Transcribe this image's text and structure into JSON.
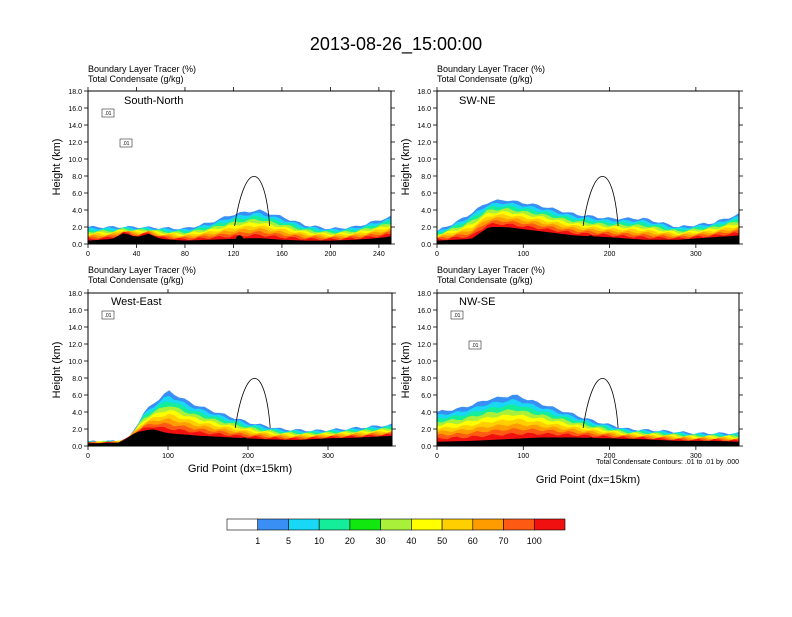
{
  "figure": {
    "title": "2013-08-26_15:00:00",
    "xaxis_title": "Grid Point (dx=15km)",
    "contour_note": "Total Condensate Contours: .01 to .01 by .000"
  },
  "colorbar": {
    "labels": [
      "1",
      "5",
      "10",
      "20",
      "30",
      "40",
      "50",
      "60",
      "70",
      "100"
    ],
    "colors": [
      "#ffffff",
      "#3a8ff5",
      "#18d8f5",
      "#14ee9a",
      "#10e810",
      "#a8f03a",
      "#ffff00",
      "#ffcf00",
      "#ff9c00",
      "#ff5a14",
      "#f01010"
    ]
  },
  "chart_data": [
    {
      "type": "heatmap",
      "name": "South-North",
      "title_line1": "Boundary Layer Tracer   (%)",
      "title_line2": "Total Condensate   (g/kg)",
      "ylabel": "Height (km)",
      "xlim": [
        0,
        250
      ],
      "ylim": [
        0,
        18
      ],
      "xticks": [
        "0",
        "40",
        "80",
        "120",
        "160",
        "200",
        "240"
      ],
      "yticks": [
        "0.0",
        "2.0",
        "4.0",
        "6.0",
        "8.0",
        "10.0",
        "12.0",
        "14.0",
        "16.0",
        "18.0"
      ],
      "contour_labels": [
        ".01",
        ".01"
      ],
      "terrain_x": [
        0,
        20,
        30,
        40,
        50,
        60,
        80,
        100,
        120,
        140,
        160,
        180,
        200,
        220,
        240,
        250
      ],
      "terrain_km": [
        0.4,
        0.6,
        1.3,
        0.8,
        1.2,
        0.6,
        0.4,
        0.5,
        0.6,
        0.7,
        0.5,
        0.4,
        0.4,
        0.5,
        0.7,
        0.9
      ],
      "bl_top_x": [
        0,
        40,
        80,
        100,
        120,
        140,
        160,
        180,
        200,
        220,
        240,
        250
      ],
      "bl_top_km": [
        2.0,
        2.0,
        1.8,
        2.5,
        3.5,
        4.0,
        3.2,
        2.2,
        1.8,
        2.0,
        2.8,
        3.2
      ],
      "marker_x": 125
    },
    {
      "type": "heatmap",
      "name": "SW-NE",
      "title_line1": "Boundary Layer Tracer   (%)",
      "title_line2": "Total Condensate   (g/kg)",
      "ylabel": "Height (km)",
      "xlim": [
        0,
        350
      ],
      "ylim": [
        0,
        18
      ],
      "xticks": [
        "0",
        "100",
        "200",
        "300"
      ],
      "yticks": [
        "0.0",
        "2.0",
        "4.0",
        "6.0",
        "8.0",
        "10.0",
        "12.0",
        "14.0",
        "16.0",
        "18.0"
      ],
      "contour_labels": [],
      "terrain_x": [
        0,
        40,
        60,
        80,
        120,
        160,
        200,
        240,
        280,
        320,
        350
      ],
      "terrain_km": [
        0.4,
        0.6,
        2.0,
        2.0,
        1.5,
        1.0,
        0.8,
        0.5,
        0.5,
        0.8,
        1.0
      ],
      "bl_top_x": [
        0,
        30,
        60,
        80,
        120,
        160,
        200,
        240,
        280,
        320,
        350
      ],
      "bl_top_km": [
        1.5,
        3.0,
        5.0,
        5.2,
        4.5,
        3.5,
        3.0,
        3.0,
        2.0,
        2.5,
        3.5
      ],
      "marker_x": 178
    },
    {
      "type": "heatmap",
      "name": "West-East",
      "title_line1": "Boundary Layer Tracer   (%)",
      "title_line2": "Total Condensate   (g/kg)",
      "ylabel": "Height (km)",
      "xlim": [
        0,
        380
      ],
      "ylim": [
        0,
        18
      ],
      "xticks": [
        "0",
        "100",
        "200",
        "300"
      ],
      "yticks": [
        "0.0",
        "2.0",
        "4.0",
        "6.0",
        "8.0",
        "10.0",
        "12.0",
        "14.0",
        "16.0",
        "18.0"
      ],
      "contour_labels": [
        ".01"
      ],
      "terrain_x": [
        0,
        40,
        60,
        80,
        100,
        140,
        180,
        220,
        260,
        300,
        340,
        380
      ],
      "terrain_km": [
        0.3,
        0.4,
        1.6,
        2.0,
        1.5,
        1.2,
        1.0,
        0.8,
        0.7,
        0.9,
        1.0,
        1.2
      ],
      "bl_top_x": [
        0,
        50,
        70,
        100,
        130,
        160,
        200,
        240,
        280,
        320,
        380
      ],
      "bl_top_km": [
        0.5,
        0.6,
        4.0,
        6.5,
        5.0,
        4.0,
        2.8,
        2.0,
        1.8,
        2.0,
        2.5
      ],
      "marker_x": 195
    },
    {
      "type": "heatmap",
      "name": "NW-SE",
      "title_line1": "Boundary Layer Tracer   (%)",
      "title_line2": "Total Condensate   (g/kg)",
      "ylabel": "Height (km)",
      "xlim": [
        0,
        350
      ],
      "ylim": [
        0,
        18
      ],
      "xticks": [
        "0",
        "100",
        "200",
        "300"
      ],
      "yticks": [
        "0.0",
        "2.0",
        "4.0",
        "6.0",
        "8.0",
        "10.0",
        "12.0",
        "14.0",
        "16.0",
        "18.0"
      ],
      "contour_labels": [
        ".01",
        ".01"
      ],
      "terrain_x": [
        0,
        40,
        80,
        120,
        160,
        200,
        240,
        280,
        320,
        350
      ],
      "terrain_km": [
        0.5,
        0.6,
        0.8,
        1.0,
        1.0,
        0.9,
        0.8,
        0.6,
        0.6,
        0.5
      ],
      "bl_top_x": [
        0,
        30,
        60,
        90,
        120,
        150,
        180,
        220,
        260,
        300,
        350
      ],
      "bl_top_km": [
        4.0,
        4.5,
        5.5,
        6.0,
        5.0,
        4.0,
        3.0,
        2.0,
        1.8,
        1.5,
        1.5
      ],
      "marker_x": 178
    }
  ]
}
